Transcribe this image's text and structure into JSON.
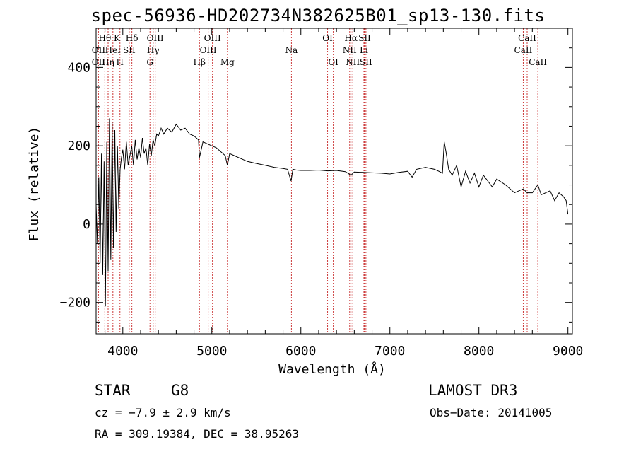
{
  "chart_data": {
    "type": "line",
    "title": "spec-56936-HD202734N382625B01_sp13-130.fits",
    "xlabel": "Wavelength (Å)",
    "ylabel": "Flux (relative)",
    "xlim": [
      3700,
      9050
    ],
    "ylim": [
      -280,
      500
    ],
    "xticks": [
      4000,
      5000,
      6000,
      7000,
      8000,
      9000
    ],
    "yticks": [
      -200,
      0,
      200,
      400
    ],
    "series": [
      {
        "name": "flux",
        "x": [
          3700,
          3715,
          3730,
          3745,
          3760,
          3775,
          3790,
          3805,
          3820,
          3835,
          3850,
          3865,
          3880,
          3895,
          3910,
          3925,
          3940,
          3955,
          3970,
          3985,
          4000,
          4020,
          4040,
          4060,
          4080,
          4100,
          4120,
          4140,
          4160,
          4180,
          4200,
          4220,
          4240,
          4260,
          4280,
          4300,
          4320,
          4340,
          4360,
          4380,
          4400,
          4430,
          4460,
          4500,
          4550,
          4600,
          4650,
          4700,
          4750,
          4800,
          4850,
          4861,
          4900,
          4950,
          5000,
          5050,
          5100,
          5150,
          5175,
          5200,
          5250,
          5300,
          5400,
          5500,
          5600,
          5700,
          5800,
          5850,
          5890,
          5910,
          5950,
          6000,
          6100,
          6200,
          6300,
          6400,
          6500,
          6563,
          6600,
          6700,
          6800,
          6900,
          7000,
          7100,
          7200,
          7250,
          7300,
          7400,
          7500,
          7550,
          7590,
          7610,
          7630,
          7660,
          7700,
          7750,
          7800,
          7850,
          7900,
          7950,
          8000,
          8050,
          8100,
          8150,
          8200,
          8300,
          8400,
          8500,
          8542,
          8600,
          8662,
          8700,
          8800,
          8850,
          8900,
          8950,
          8980,
          9000
        ],
        "values": [
          50,
          -50,
          120,
          -100,
          180,
          -130,
          160,
          -210,
          210,
          -120,
          270,
          -90,
          260,
          -60,
          240,
          -20,
          200,
          40,
          140,
          170,
          190,
          140,
          210,
          150,
          175,
          200,
          150,
          215,
          165,
          195,
          170,
          220,
          180,
          195,
          150,
          205,
          175,
          215,
          200,
          230,
          225,
          245,
          230,
          245,
          235,
          255,
          240,
          245,
          230,
          225,
          215,
          170,
          210,
          205,
          200,
          195,
          185,
          175,
          150,
          180,
          175,
          170,
          160,
          155,
          150,
          145,
          142,
          140,
          110,
          140,
          138,
          137,
          137,
          138,
          136,
          137,
          134,
          125,
          133,
          132,
          131,
          130,
          128,
          132,
          135,
          120,
          140,
          145,
          140,
          135,
          130,
          210,
          185,
          140,
          125,
          150,
          95,
          135,
          105,
          130,
          95,
          125,
          110,
          95,
          115,
          100,
          80,
          90,
          80,
          80,
          100,
          75,
          85,
          60,
          80,
          70,
          60,
          25
        ]
      }
    ],
    "lines": [
      {
        "name": "OII",
        "wavelength": 3727
      },
      {
        "name": "Hθ",
        "wavelength": 3798
      },
      {
        "name": "Hη",
        "wavelength": 3835
      },
      {
        "name": "HeI",
        "wavelength": 3889
      },
      {
        "name": "K",
        "wavelength": 3934
      },
      {
        "name": "H",
        "wavelength": 3968
      },
      {
        "name": "SII",
        "wavelength": 4072
      },
      {
        "name": "Hδ",
        "wavelength": 4102
      },
      {
        "name": "G",
        "wavelength": 4305
      },
      {
        "name": "Hγ",
        "wavelength": 4341
      },
      {
        "name": "OIII",
        "wavelength": 4364
      },
      {
        "name": "Hβ",
        "wavelength": 4861
      },
      {
        "name": "OIII",
        "wavelength": 4959
      },
      {
        "name": "OIII",
        "wavelength": 5007
      },
      {
        "name": "Mg",
        "wavelength": 5175
      },
      {
        "name": "Na",
        "wavelength": 5894
      },
      {
        "name": "OI",
        "wavelength": 6300
      },
      {
        "name": "OI",
        "wavelength": 6364
      },
      {
        "name": "NII",
        "wavelength": 6548
      },
      {
        "name": "Hα",
        "wavelength": 6563
      },
      {
        "name": "NII",
        "wavelength": 6583
      },
      {
        "name": "Li",
        "wavelength": 6708
      },
      {
        "name": "SII",
        "wavelength": 6716
      },
      {
        "name": "SII",
        "wavelength": 6731
      },
      {
        "name": "CaII",
        "wavelength": 8498
      },
      {
        "name": "CaII",
        "wavelength": 8542
      },
      {
        "name": "CaII",
        "wavelength": 8662
      }
    ]
  },
  "line_labels": {
    "row1": [
      {
        "text": "Hθ",
        "wavelength": 3798
      },
      {
        "text": "K",
        "wavelength": 3934
      },
      {
        "text": "Hδ",
        "wavelength": 4102
      },
      {
        "text": "OIII",
        "wavelength": 4364
      },
      {
        "text": "OIII",
        "wavelength": 5007
      },
      {
        "text": "OI",
        "wavelength": 6300
      },
      {
        "text": "Hα",
        "wavelength": 6563
      },
      {
        "text": "SII",
        "wavelength": 6716
      },
      {
        "text": "CaII",
        "wavelength": 8542
      }
    ],
    "row2": [
      {
        "text": "OII",
        "wavelength": 3727
      },
      {
        "text": "HeI",
        "wavelength": 3889
      },
      {
        "text": "SII",
        "wavelength": 4072
      },
      {
        "text": "Hγ",
        "wavelength": 4341
      },
      {
        "text": "OIII",
        "wavelength": 4959
      },
      {
        "text": "Na",
        "wavelength": 5894
      },
      {
        "text": "NII",
        "wavelength": 6548
      },
      {
        "text": "Li",
        "wavelength": 6708
      },
      {
        "text": "CaII",
        "wavelength": 8498
      }
    ],
    "row3": [
      {
        "text": "OII",
        "wavelength": 3727
      },
      {
        "text": "Hη",
        "wavelength": 3835
      },
      {
        "text": "H",
        "wavelength": 3968
      },
      {
        "text": "G",
        "wavelength": 4305
      },
      {
        "text": "Hβ",
        "wavelength": 4861
      },
      {
        "text": "Mg",
        "wavelength": 5175
      },
      {
        "text": "OI",
        "wavelength": 6364
      },
      {
        "text": "NII",
        "wavelength": 6583
      },
      {
        "text": "SII",
        "wavelength": 6731
      },
      {
        "text": "CaII",
        "wavelength": 8662
      }
    ]
  },
  "info": {
    "class": "STAR",
    "subclass": "G8",
    "survey": "LAMOST DR3",
    "cz": "cz = −7.9 ± 2.9 km/s",
    "obs_date": "Obs−Date: 20141005",
    "radec": "RA = 309.19384, DEC =  38.95263"
  },
  "colors": {
    "line_marker": "#cc3a3a",
    "spectrum": "#000000"
  }
}
